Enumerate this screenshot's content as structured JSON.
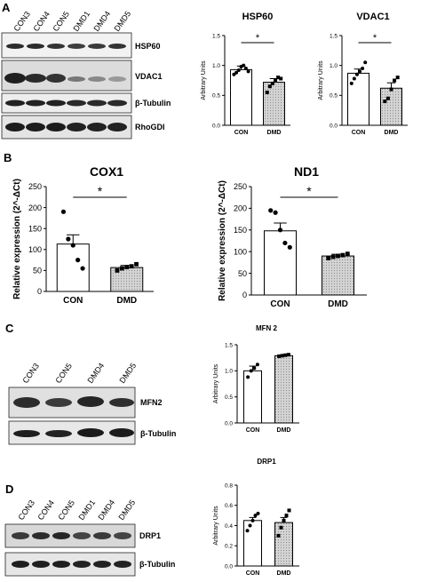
{
  "panels": {
    "A": {
      "letter": "A",
      "lanes": [
        "CON3",
        "CON4",
        "CON5",
        "DMD1",
        "DMD4",
        "DMD5"
      ],
      "blots": [
        "HSP60",
        "VDAC1",
        "β-Tubulin",
        "RhoGDI"
      ]
    },
    "B": {
      "letter": "B"
    },
    "C": {
      "letter": "C",
      "lanes": [
        "CON3",
        "CON5",
        "DMD4",
        "DMD5"
      ],
      "blots": [
        "MFN2",
        "β-Tubulin"
      ]
    },
    "D": {
      "letter": "D",
      "lanes": [
        "CON3",
        "CON4",
        "CON5",
        "DMD1",
        "DMD4",
        "DMD5"
      ],
      "blots": [
        "DRP1",
        "β-Tubulin"
      ]
    }
  },
  "significance_marker": "*",
  "chart_data": [
    {
      "id": "hsp60",
      "type": "bar",
      "title": "HSP60",
      "categories": [
        "CON",
        "DMD"
      ],
      "values": [
        0.93,
        0.72
      ],
      "errors": [
        0.06,
        0.06
      ],
      "points": [
        [
          0.85,
          0.88,
          0.92,
          0.98,
          1.0,
          0.95,
          0.9
        ],
        [
          0.55,
          0.65,
          0.7,
          0.75,
          0.8,
          0.78
        ]
      ],
      "ylabel": "Arbitrary Units",
      "ylim": [
        0,
        1.5
      ],
      "yticks": [
        0,
        0.5,
        1.0,
        1.5
      ],
      "ytick_labels": [
        "0.0",
        "0.5",
        "1.0",
        "1.5"
      ],
      "significance": "*"
    },
    {
      "id": "vdac1",
      "type": "bar",
      "title": "VDAC1",
      "categories": [
        "CON",
        "DMD"
      ],
      "values": [
        0.87,
        0.62
      ],
      "errors": [
        0.07,
        0.09
      ],
      "points": [
        [
          0.7,
          0.78,
          0.85,
          0.9,
          0.95,
          1.05
        ],
        [
          0.4,
          0.45,
          0.6,
          0.75,
          0.8
        ]
      ],
      "ylabel": "Arbitrary Units",
      "ylim": [
        0,
        1.5
      ],
      "yticks": [
        0,
        0.5,
        1.0,
        1.5
      ],
      "ytick_labels": [
        "0.0",
        "0.5",
        "1.0",
        "1.5"
      ],
      "significance": "*"
    },
    {
      "id": "cox1",
      "type": "bar",
      "title": "COX1",
      "categories": [
        "CON",
        "DMD"
      ],
      "values": [
        113,
        57
      ],
      "errors": [
        22,
        5
      ],
      "points": [
        [
          190,
          125,
          110,
          75,
          55
        ],
        [
          50,
          55,
          58,
          60,
          65
        ]
      ],
      "ylabel": "Relative expression (2^-ΔCt)",
      "ylim": [
        0,
        250
      ],
      "yticks": [
        0,
        50,
        100,
        150,
        200,
        250
      ],
      "ytick_labels": [
        "0",
        "50",
        "100",
        "150",
        "200",
        "250"
      ],
      "significance": "*"
    },
    {
      "id": "nd1",
      "type": "bar",
      "title": "ND1",
      "categories": [
        "CON",
        "DMD"
      ],
      "values": [
        148,
        90
      ],
      "errors": [
        18,
        4
      ],
      "points": [
        [
          195,
          190,
          150,
          120,
          110
        ],
        [
          85,
          88,
          90,
          92,
          95
        ]
      ],
      "ylabel": "Relative expression (2^-ΔCt)",
      "ylim": [
        0,
        250
      ],
      "yticks": [
        0,
        50,
        100,
        150,
        200,
        250
      ],
      "ytick_labels": [
        "0",
        "50",
        "100",
        "150",
        "200",
        "250"
      ],
      "significance": "*"
    },
    {
      "id": "mfn2",
      "type": "bar",
      "title": "MFN 2",
      "categories": [
        "CON",
        "DMD"
      ],
      "values": [
        1.0,
        1.29
      ],
      "errors": [
        0.09,
        0.01
      ],
      "points": [
        [
          0.88,
          1.0,
          1.05,
          1.12
        ],
        [
          1.28,
          1.29,
          1.3,
          1.31
        ]
      ],
      "ylabel": "Arbitrary Units",
      "ylim": [
        0,
        1.5
      ],
      "yticks": [
        0,
        0.5,
        1.0,
        1.5
      ],
      "ytick_labels": [
        "0.0",
        "0.5",
        "1.0",
        "1.5"
      ],
      "significance": ""
    },
    {
      "id": "drp1",
      "type": "bar",
      "title": "DRP1",
      "categories": [
        "CON",
        "DMD"
      ],
      "values": [
        0.45,
        0.43
      ],
      "errors": [
        0.03,
        0.05
      ],
      "points": [
        [
          0.35,
          0.4,
          0.45,
          0.5,
          0.52
        ],
        [
          0.3,
          0.38,
          0.45,
          0.5,
          0.55
        ]
      ],
      "ylabel": "Arbitrary Units",
      "ylim": [
        0,
        0.8
      ],
      "yticks": [
        0,
        0.2,
        0.4,
        0.6,
        0.8
      ],
      "ytick_labels": [
        "0.0",
        "0.2",
        "0.4",
        "0.6",
        "0.8"
      ],
      "significance": ""
    }
  ]
}
